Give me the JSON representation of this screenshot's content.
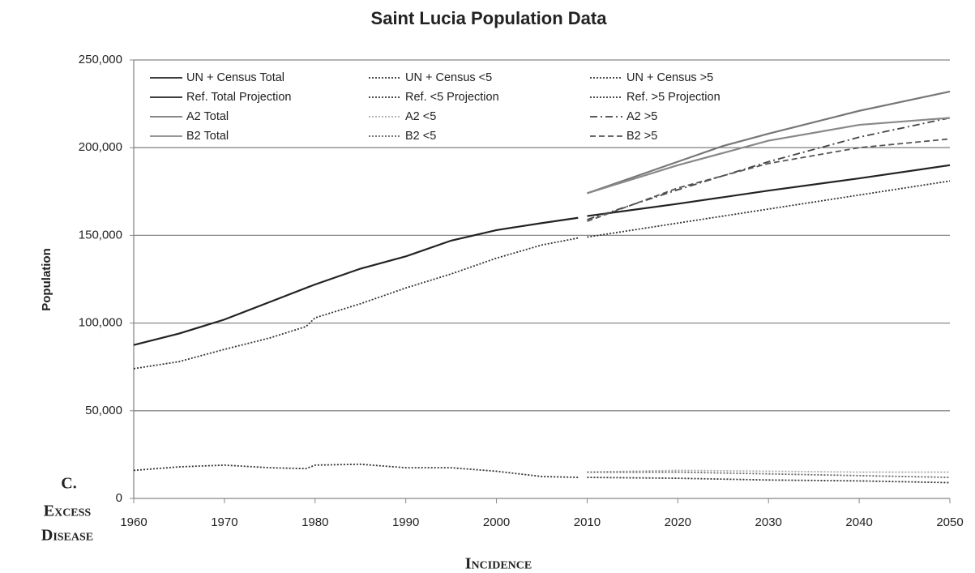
{
  "chart_data": {
    "type": "line",
    "title": "Saint Lucia Population Data",
    "y_label": "Population",
    "annotations": [
      "C.",
      "Excess",
      "Disease",
      "Incidence"
    ],
    "xlim": [
      1960,
      2050
    ],
    "xticks": [
      1960,
      1970,
      1980,
      1990,
      2000,
      2010,
      2020,
      2030,
      2040,
      2050
    ],
    "ylim": [
      0,
      250000
    ],
    "yticks": [
      0,
      {
        "value": 50000,
        "label": "50,000"
      },
      {
        "value": 100000,
        "label": "100,000"
      },
      {
        "value": 150000,
        "label": "150,000"
      },
      {
        "value": 200000,
        "label": "200,000"
      },
      {
        "value": 250000,
        "label": "250,000"
      }
    ],
    "grid": true,
    "legend": "top",
    "series": [
      {
        "name": "UN + Census Total",
        "color": "#222222",
        "style": "solid",
        "x": [
          1960,
          1965,
          1970,
          1975,
          1980,
          1985,
          1990,
          1995,
          2000,
          2005,
          2009
        ],
        "values": [
          87500,
          94000,
          102000,
          112000,
          122000,
          131000,
          138000,
          147000,
          153000,
          157000,
          160000
        ]
      },
      {
        "name": "UN + Census <5",
        "color": "#333333",
        "style": "dotted",
        "x": [
          1960,
          1965,
          1970,
          1975,
          1979,
          1980,
          1985,
          1990,
          1995,
          2000,
          2005,
          2009
        ],
        "values": [
          16000,
          18000,
          19000,
          17500,
          17000,
          19000,
          19500,
          17500,
          17500,
          15500,
          12500,
          12000
        ]
      },
      {
        "name": "UN + Census >5",
        "color": "#333333",
        "style": "dotted",
        "x": [
          1960,
          1965,
          1970,
          1975,
          1979,
          1980,
          1985,
          1990,
          1995,
          2000,
          2005,
          2009
        ],
        "values": [
          74000,
          78000,
          85000,
          91500,
          98000,
          103000,
          111000,
          120000,
          128000,
          137000,
          144500,
          148500
        ]
      },
      {
        "name": "Ref. Total Projection",
        "color": "#222222",
        "style": "solid",
        "x": [
          2010,
          2020,
          2030,
          2040,
          2050
        ],
        "values": [
          161000,
          168000,
          175500,
          182500,
          190000
        ]
      },
      {
        "name": "Ref. <5 Projection",
        "color": "#333333",
        "style": "dotted",
        "x": [
          2010,
          2020,
          2030,
          2040,
          2050
        ],
        "values": [
          12000,
          11500,
          10500,
          10000,
          9000
        ]
      },
      {
        "name": "Ref. >5 Projection",
        "color": "#333333",
        "style": "dotted",
        "x": [
          2010,
          2020,
          2030,
          2040,
          2050
        ],
        "values": [
          149000,
          157000,
          165000,
          173000,
          181000
        ]
      },
      {
        "name": "A2 Total",
        "color": "#777777",
        "style": "solid",
        "x": [
          2010,
          2020,
          2025,
          2030,
          2040,
          2050
        ],
        "values": [
          174000,
          192000,
          201000,
          208000,
          221000,
          232000
        ]
      },
      {
        "name": "A2 <5",
        "color": "#aaaaaa",
        "style": "dotted",
        "x": [
          2010,
          2020,
          2030,
          2040,
          2050
        ],
        "values": [
          15000,
          16000,
          15500,
          15000,
          15000
        ]
      },
      {
        "name": "A2 >5",
        "color": "#444444",
        "style": "dashdot",
        "x": [
          2010,
          2020,
          2030,
          2040,
          2050
        ],
        "values": [
          159000,
          176000,
          192000,
          206000,
          217000
        ]
      },
      {
        "name": "B2 Total",
        "color": "#888888",
        "style": "solid",
        "x": [
          2010,
          2020,
          2030,
          2040,
          2050
        ],
        "values": [
          174000,
          190000,
          204000,
          213000,
          217000
        ]
      },
      {
        "name": "B2 <5",
        "color": "#666666",
        "style": "dotted",
        "x": [
          2010,
          2020,
          2030,
          2040,
          2050
        ],
        "values": [
          15000,
          15000,
          14000,
          13000,
          12000
        ]
      },
      {
        "name": "B2 >5",
        "color": "#555555",
        "style": "dashed",
        "x": [
          2010,
          2020,
          2030,
          2040,
          2050
        ],
        "values": [
          158000,
          177000,
          191000,
          200000,
          205000
        ]
      }
    ]
  }
}
